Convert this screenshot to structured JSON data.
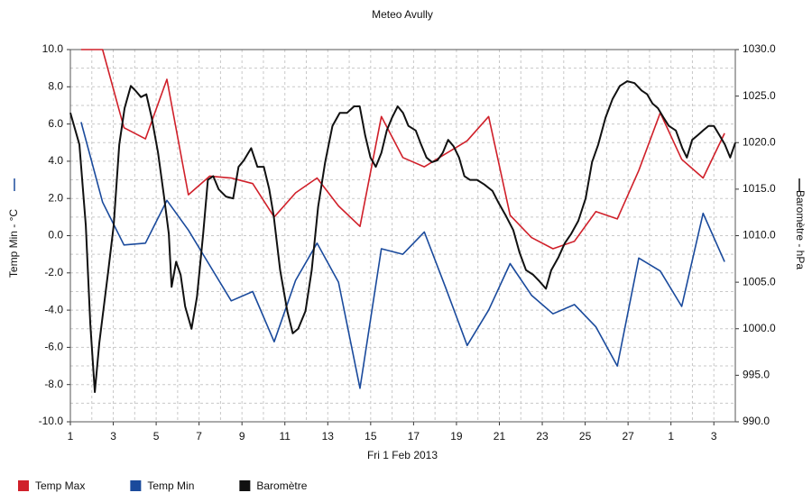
{
  "chart_data": {
    "type": "line",
    "title": "Meteo  Avully",
    "xlabel": "Fri 1 Feb 2013",
    "ylabel": "Temp Min - °C",
    "y2label": "Baromètre - hPa",
    "xlim": [
      1,
      32
    ],
    "xticks": [
      1,
      3,
      5,
      7,
      9,
      11,
      13,
      15,
      17,
      19,
      21,
      23,
      25,
      27,
      {
        "value": 29,
        "label": "1"
      },
      {
        "value": 31,
        "label": "3"
      }
    ],
    "xminorticks": [
      2,
      4,
      6,
      8,
      10,
      12,
      14,
      16,
      18,
      20,
      22,
      24,
      26,
      28,
      30,
      32
    ],
    "ylim": [
      -10,
      10
    ],
    "yticks": [
      {
        "value": -10,
        "label": "-10.0"
      },
      {
        "value": -8,
        "label": "-8.0"
      },
      {
        "value": -6,
        "label": "-6.0"
      },
      {
        "value": -4,
        "label": "-4.0"
      },
      {
        "value": -2,
        "label": "-2.0"
      },
      {
        "value": 0,
        "label": "0.0"
      },
      {
        "value": 2,
        "label": "2.0"
      },
      {
        "value": 4,
        "label": "4.0"
      },
      {
        "value": 6,
        "label": "6.0"
      },
      {
        "value": 8,
        "label": "8.0"
      },
      {
        "value": 10,
        "label": "10.0"
      }
    ],
    "yminorticks": [
      -9,
      -7,
      -5,
      -3,
      -1,
      1,
      3,
      5,
      7,
      9
    ],
    "y2lim": [
      990,
      1030
    ],
    "y2ticks": [
      {
        "value": 990,
        "label": "990.0"
      },
      {
        "value": 995,
        "label": "995.0"
      },
      {
        "value": 1000,
        "label": "1000.0"
      },
      {
        "value": 1005,
        "label": "1005.0"
      },
      {
        "value": 1010,
        "label": "1010.0"
      },
      {
        "value": 1015,
        "label": "1015.0"
      },
      {
        "value": 1020,
        "label": "1020.0"
      },
      {
        "value": 1025,
        "label": "1025.0"
      },
      {
        "value": 1030,
        "label": "1030.0"
      }
    ],
    "grid": true,
    "legend": "bottom",
    "series": [
      {
        "name": "Temp Max",
        "color": "#d0202a",
        "x": [
          1.5,
          2.5,
          3.5,
          4.5,
          5.5,
          6.5,
          7.5,
          8.5,
          9.5,
          10.5,
          11.5,
          12.5,
          13.5,
          14.5,
          15.5,
          16.5,
          17.5,
          18.5,
          19.5,
          20.5,
          21.5,
          22.5,
          23.5,
          24.5,
          25.5,
          26.5,
          27.5,
          28.5,
          29.5,
          30.5,
          31.5
        ],
        "values": [
          10.0,
          10.0,
          5.8,
          5.2,
          8.4,
          2.2,
          3.2,
          3.1,
          2.8,
          1.0,
          2.3,
          3.1,
          1.6,
          0.5,
          6.4,
          4.2,
          3.7,
          4.4,
          5.1,
          6.4,
          1.1,
          -0.1,
          -0.7,
          -0.3,
          1.3,
          0.9,
          3.5,
          6.6,
          4.1,
          3.1,
          5.5
        ]
      },
      {
        "name": "Temp Min",
        "color": "#1a4a9c",
        "x": [
          1.5,
          2.5,
          3.5,
          4.5,
          5.5,
          6.5,
          7.5,
          8.5,
          9.5,
          10.5,
          11.5,
          12.5,
          13.5,
          14.5,
          15.5,
          16.5,
          17.5,
          18.5,
          19.5,
          20.5,
          21.5,
          22.5,
          23.5,
          24.5,
          25.5,
          26.5,
          27.5,
          28.5,
          29.5,
          30.5,
          31.5
        ],
        "values": [
          6.1,
          1.8,
          -0.5,
          -0.4,
          1.9,
          0.3,
          -1.6,
          -3.5,
          -3.0,
          -5.7,
          -2.4,
          -0.4,
          -2.5,
          -8.2,
          -0.7,
          -1.0,
          0.2,
          -2.8,
          -5.9,
          -4.0,
          -1.5,
          -3.2,
          -4.2,
          -3.7,
          -4.9,
          -7.0,
          -1.2,
          -1.9,
          -3.8,
          1.2,
          -1.4
        ]
      },
      {
        "name": "Baromètre",
        "color": "#111111",
        "axis": "y2",
        "x": [
          1.0,
          1.42,
          1.72,
          1.93,
          2.14,
          2.35,
          2.56,
          2.77,
          3.02,
          3.28,
          3.53,
          3.82,
          4.03,
          4.29,
          4.54,
          4.79,
          5.09,
          5.38,
          5.59,
          5.72,
          5.93,
          6.14,
          6.35,
          6.65,
          6.9,
          7.19,
          7.41,
          7.66,
          7.91,
          8.25,
          8.59,
          8.84,
          9.09,
          9.43,
          9.72,
          10.02,
          10.27,
          10.48,
          10.78,
          11.11,
          11.37,
          11.62,
          11.96,
          12.25,
          12.55,
          12.88,
          13.22,
          13.56,
          13.9,
          14.23,
          14.49,
          14.74,
          14.99,
          15.24,
          15.5,
          15.75,
          16.0,
          16.26,
          16.51,
          16.76,
          17.1,
          17.35,
          17.6,
          17.86,
          18.11,
          18.36,
          18.61,
          18.87,
          19.12,
          19.37,
          19.63,
          19.96,
          20.3,
          20.68,
          20.97,
          21.31,
          21.65,
          21.94,
          22.24,
          22.58,
          22.87,
          23.17,
          23.42,
          23.76,
          24.05,
          24.35,
          24.68,
          25.02,
          25.32,
          25.61,
          25.95,
          26.28,
          26.62,
          26.96,
          27.3,
          27.63,
          27.89,
          28.14,
          28.39,
          28.65,
          28.9,
          29.23,
          29.53,
          29.74,
          29.99,
          30.25,
          30.5,
          30.75,
          31.0,
          31.26,
          31.51,
          31.76,
          32.0
        ],
        "values": [
          1023.2,
          1019.8,
          1011.1,
          1000.5,
          993.2,
          998.5,
          1002.4,
          1006.3,
          1011.1,
          1019.8,
          1023.7,
          1026.1,
          1025.6,
          1024.9,
          1025.2,
          1022.7,
          1018.9,
          1014.0,
          1010.2,
          1004.5,
          1007.2,
          1005.8,
          1002.4,
          1000.0,
          1003.4,
          1010.2,
          1016.0,
          1016.4,
          1015.0,
          1014.2,
          1014.0,
          1017.4,
          1018.1,
          1019.4,
          1017.4,
          1017.4,
          1015.0,
          1012.1,
          1006.3,
          1001.9,
          999.5,
          1000.0,
          1001.9,
          1006.3,
          1013.1,
          1017.9,
          1021.8,
          1023.2,
          1023.2,
          1023.9,
          1023.9,
          1020.8,
          1018.4,
          1017.4,
          1018.9,
          1021.3,
          1022.7,
          1023.9,
          1023.2,
          1021.8,
          1021.3,
          1019.8,
          1018.4,
          1017.9,
          1018.1,
          1018.9,
          1020.3,
          1019.6,
          1018.4,
          1016.4,
          1016.0,
          1016.0,
          1015.5,
          1014.8,
          1013.5,
          1012.1,
          1010.6,
          1008.2,
          1006.3,
          1005.8,
          1005.1,
          1004.3,
          1006.3,
          1007.7,
          1009.2,
          1010.2,
          1011.6,
          1014.0,
          1017.9,
          1019.8,
          1022.7,
          1024.7,
          1026.1,
          1026.6,
          1026.4,
          1025.6,
          1025.2,
          1024.2,
          1023.7,
          1022.7,
          1021.8,
          1021.3,
          1019.4,
          1018.4,
          1020.3,
          1020.8,
          1021.3,
          1021.8,
          1021.8,
          1020.8,
          1019.8,
          1018.4,
          1020.0
        ]
      }
    ]
  }
}
